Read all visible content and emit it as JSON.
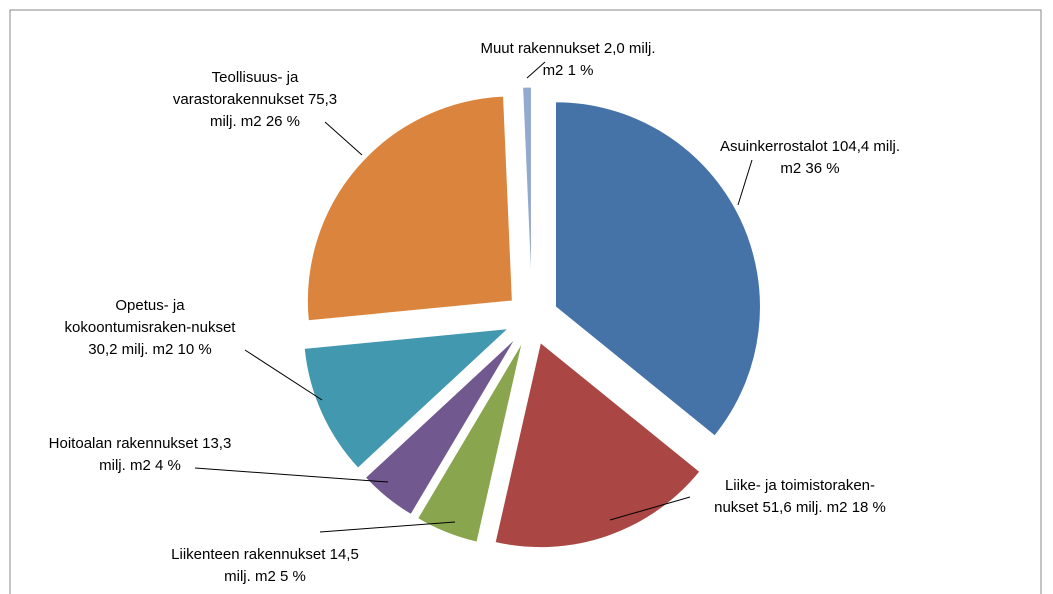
{
  "chart_data": {
    "type": "pie",
    "categories": [
      "Asuinkerrostalot",
      "Liike- ja toimistoraken-nukset",
      "Liikenteen rakennukset",
      "Hoitoalan rakennukset",
      "Opetus- ja kokoontumisraken-nukset",
      "Teollisuus- ja varastorakennukset",
      "Muut rakennukset"
    ],
    "values": [
      104.4,
      51.6,
      14.5,
      13.3,
      30.2,
      75.3,
      2.0
    ],
    "value_labels": [
      "104,4 milj. m2",
      "51,6 milj. m2",
      "14,5 milj. m2",
      "13,3 milj. m2",
      "30,2 milj. m2",
      "75,3 milj. m2",
      "2,0 milj. m2"
    ],
    "percent_labels": [
      "36 %",
      "18 %",
      "5 %",
      "4 %",
      "10 %",
      "26 %",
      "1 %"
    ],
    "colors": [
      "#4572a7",
      "#aa4643",
      "#89a54e",
      "#71588f",
      "#4198af",
      "#db843d",
      "#93a9cf"
    ]
  }
}
